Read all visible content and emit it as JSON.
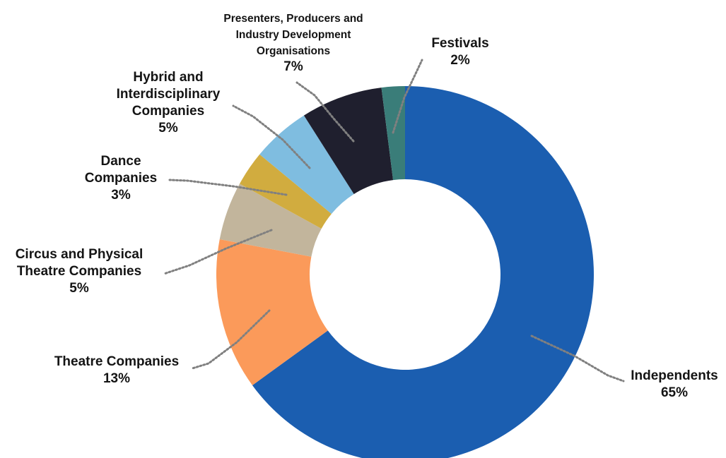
{
  "chart_data": {
    "type": "pie",
    "donut": true,
    "title": "",
    "legend": "none",
    "slices": [
      {
        "label_lines": [
          "Independents"
        ],
        "value": 65,
        "value_label": "65%",
        "color": "#1b5eb0"
      },
      {
        "label_lines": [
          "Theatre Companies"
        ],
        "value": 13,
        "value_label": "13%",
        "color": "#fb9a5a"
      },
      {
        "label_lines": [
          "Circus and Physical",
          "Theatre Companies"
        ],
        "value": 5,
        "value_label": "5%",
        "color": "#c2b59c"
      },
      {
        "label_lines": [
          "Dance",
          "Companies"
        ],
        "value": 3,
        "value_label": "3%",
        "color": "#d1ac3f"
      },
      {
        "label_lines": [
          "Hybrid and",
          "Interdisciplinary",
          "Companies"
        ],
        "value": 5,
        "value_label": "5%",
        "color": "#7fbde0"
      },
      {
        "label_lines": [
          "Presenters, Producers and",
          "Industry Development",
          "Organisations"
        ],
        "value": 7,
        "value_label": "7%",
        "color": "#1f1f2e"
      },
      {
        "label_lines": [
          "Festivals"
        ],
        "value": 2,
        "value_label": "2%",
        "color": "#3a7d79"
      }
    ]
  }
}
